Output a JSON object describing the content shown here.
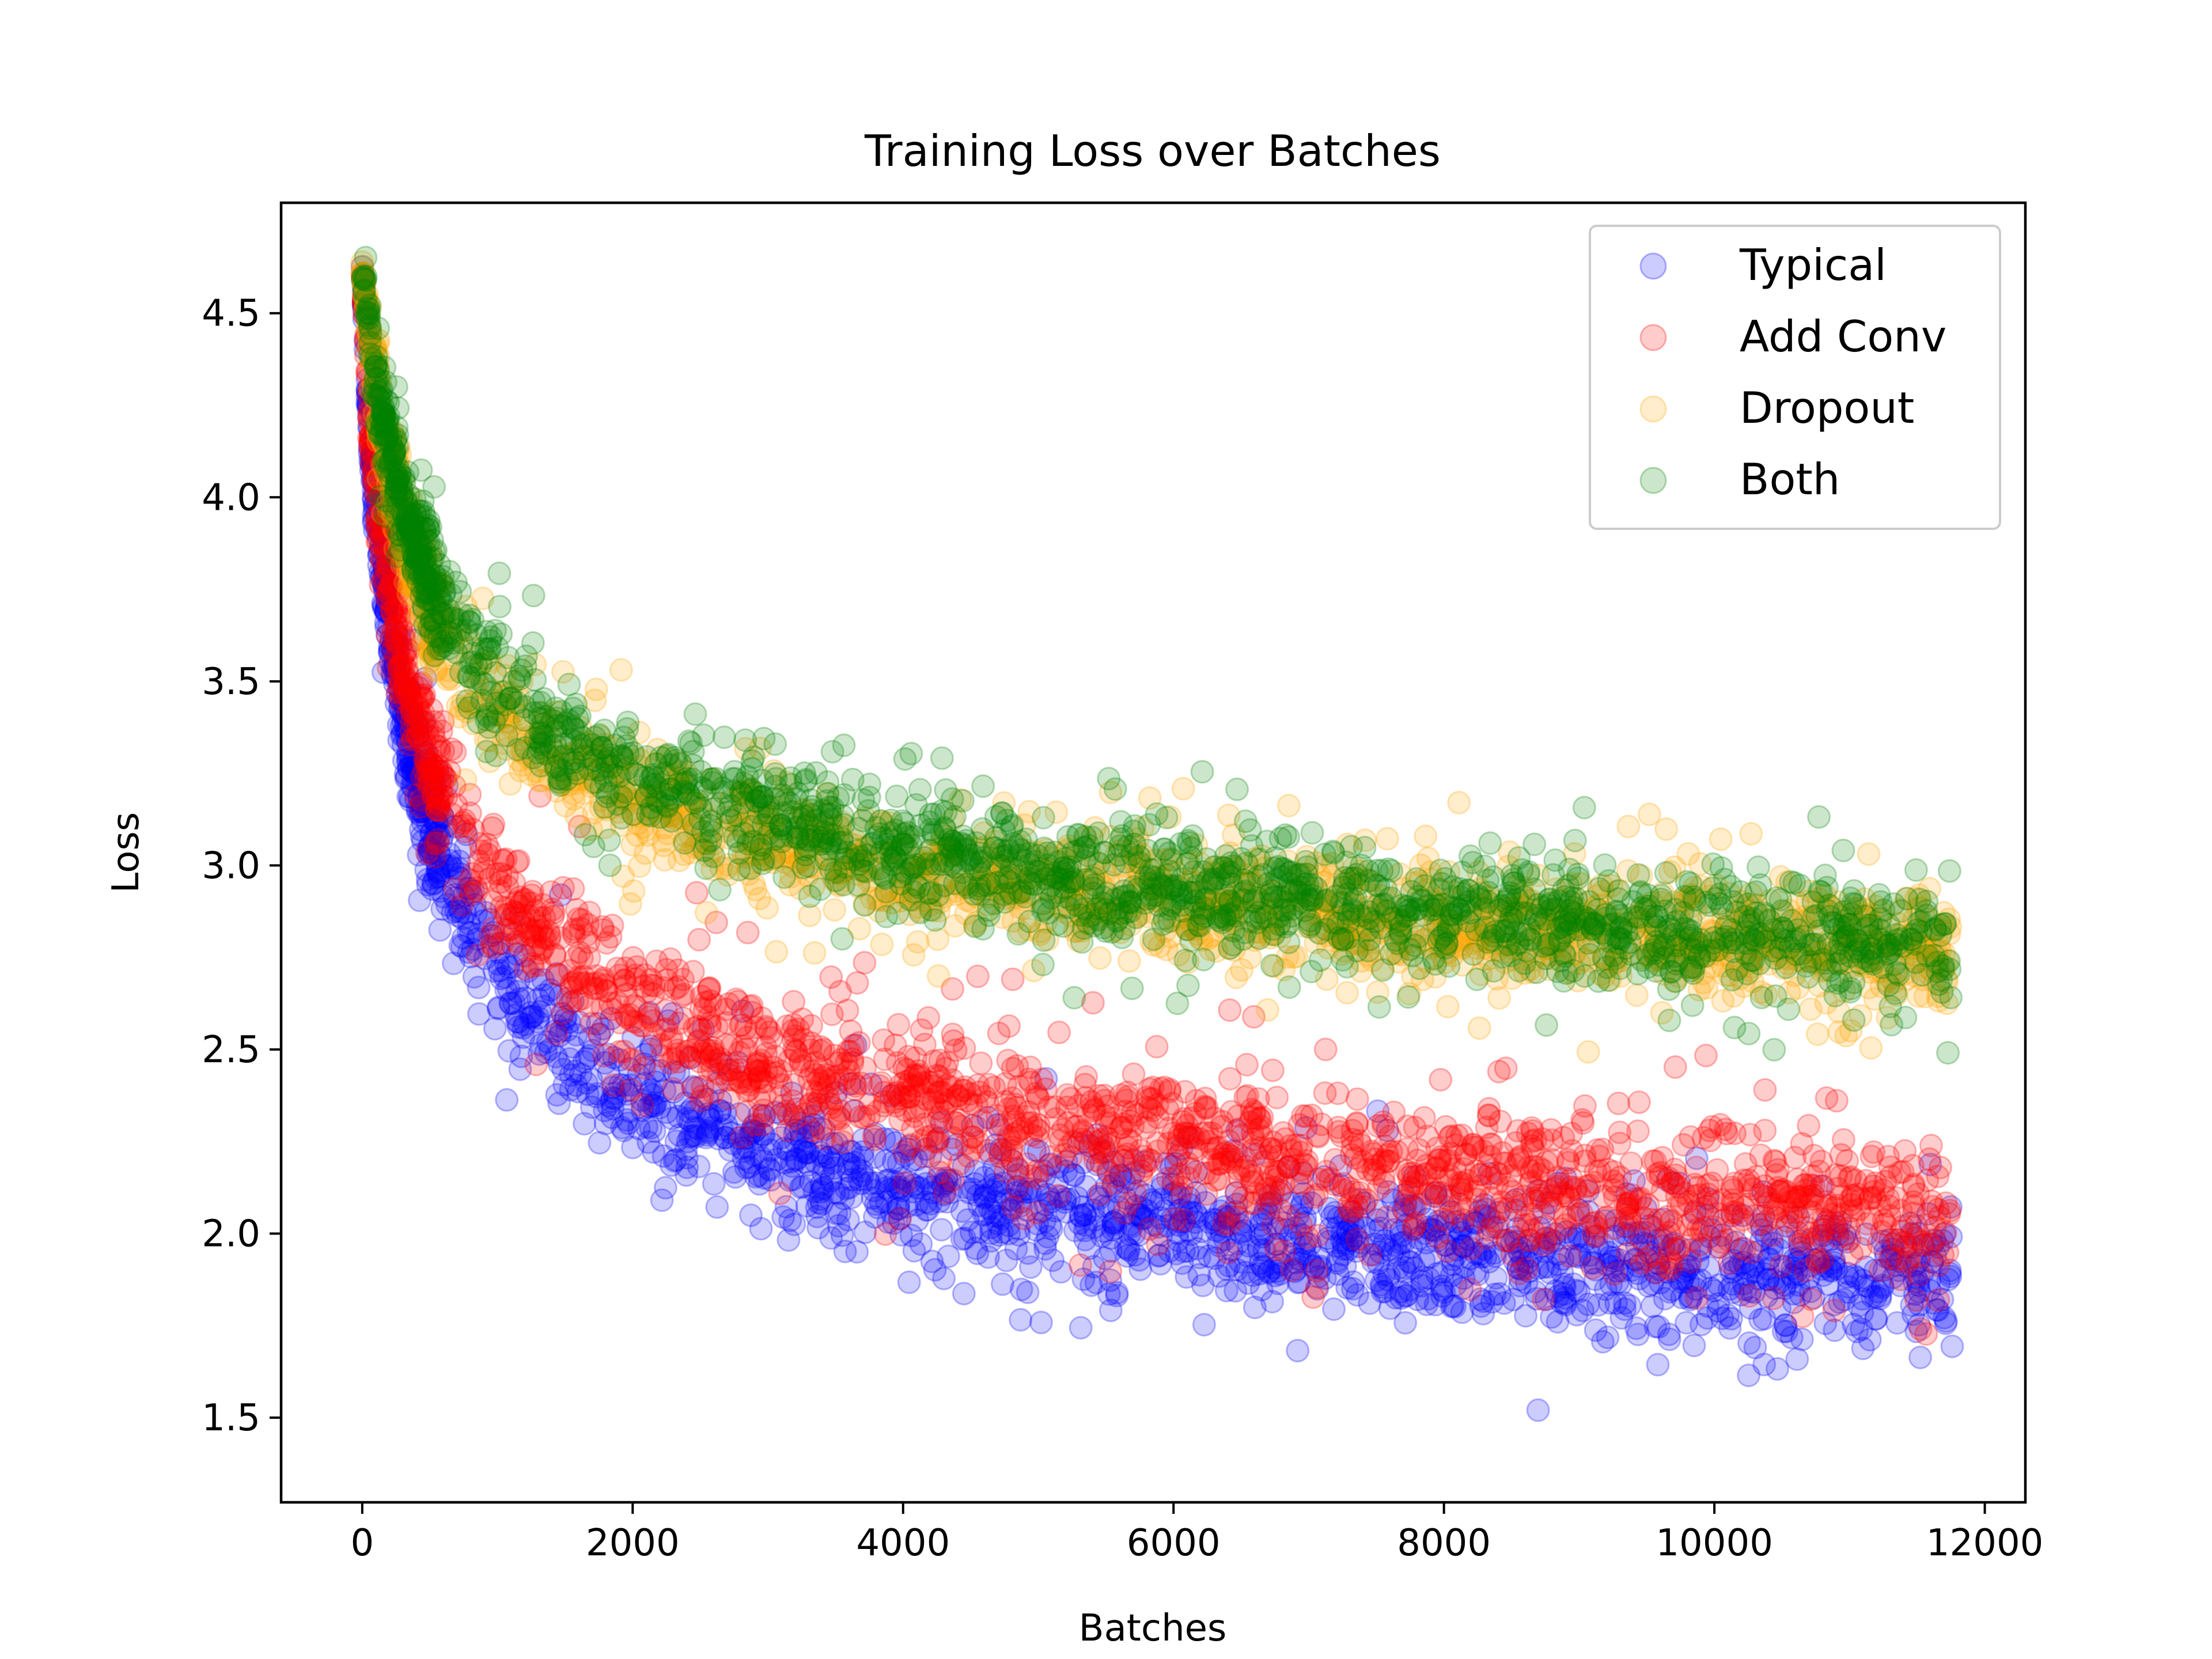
{
  "chart_data": {
    "type": "scatter",
    "title": "Training Loss over Batches",
    "xlabel": "Batches",
    "ylabel": "Loss",
    "xlim": [
      -600,
      12300
    ],
    "ylim": [
      1.27,
      4.8
    ],
    "xticks": [
      0,
      2000,
      4000,
      6000,
      8000,
      10000,
      12000
    ],
    "xtick_labels": [
      "0",
      "2000",
      "4000",
      "6000",
      "8000",
      "10000",
      "12000"
    ],
    "yticks": [
      1.5,
      2.0,
      2.5,
      3.0,
      3.5,
      4.0,
      4.5
    ],
    "ytick_labels": [
      "1.5",
      "2.0",
      "2.5",
      "3.0",
      "3.5",
      "4.0",
      "4.5"
    ],
    "grid": false,
    "legend_position": "top-right",
    "marker_alpha": 0.2,
    "series": [
      {
        "name": "Typical",
        "color": "#0000ff",
        "x": [
          0,
          50,
          100,
          200,
          300,
          400,
          600,
          800,
          1000,
          1500,
          2000,
          2500,
          3000,
          3500,
          4000,
          4500,
          5000,
          5500,
          6000,
          6500,
          7000,
          7500,
          8000,
          8500,
          9000,
          9500,
          10000,
          10500,
          11000,
          11500,
          11760
        ],
        "mean": [
          4.62,
          4.2,
          3.95,
          3.65,
          3.42,
          3.25,
          3.02,
          2.85,
          2.72,
          2.5,
          2.37,
          2.28,
          2.21,
          2.16,
          2.12,
          2.09,
          2.06,
          2.04,
          2.02,
          2.0,
          1.98,
          1.96,
          1.94,
          1.93,
          1.92,
          1.91,
          1.9,
          1.89,
          1.88,
          1.87,
          1.87
        ],
        "spread": [
          0.03,
          0.1,
          0.14,
          0.16,
          0.18,
          0.2,
          0.22,
          0.22,
          0.23,
          0.23,
          0.23,
          0.23,
          0.23,
          0.23,
          0.23,
          0.23,
          0.23,
          0.23,
          0.23,
          0.23,
          0.23,
          0.23,
          0.23,
          0.23,
          0.23,
          0.23,
          0.23,
          0.23,
          0.23,
          0.23,
          0.23
        ]
      },
      {
        "name": "Add Conv",
        "color": "#ff0000",
        "x": [
          0,
          50,
          100,
          200,
          300,
          400,
          600,
          800,
          1000,
          1500,
          2000,
          2500,
          3000,
          3500,
          4000,
          4500,
          5000,
          5500,
          6000,
          6500,
          7000,
          7500,
          8000,
          8500,
          9000,
          9500,
          10000,
          10500,
          11000,
          11500,
          11760
        ],
        "mean": [
          4.62,
          4.25,
          4.02,
          3.75,
          3.55,
          3.4,
          3.2,
          3.05,
          2.94,
          2.75,
          2.62,
          2.53,
          2.46,
          2.41,
          2.37,
          2.33,
          2.3,
          2.27,
          2.25,
          2.22,
          2.2,
          2.18,
          2.16,
          2.14,
          2.12,
          2.11,
          2.09,
          2.08,
          2.06,
          2.05,
          2.04
        ],
        "spread": [
          0.03,
          0.1,
          0.14,
          0.16,
          0.18,
          0.2,
          0.21,
          0.22,
          0.22,
          0.22,
          0.22,
          0.22,
          0.22,
          0.22,
          0.22,
          0.22,
          0.22,
          0.22,
          0.22,
          0.22,
          0.22,
          0.22,
          0.22,
          0.22,
          0.22,
          0.22,
          0.22,
          0.22,
          0.22,
          0.22,
          0.22
        ]
      },
      {
        "name": "Dropout",
        "color": "#ffa500",
        "x": [
          0,
          50,
          100,
          200,
          300,
          400,
          600,
          800,
          1000,
          1500,
          2000,
          2500,
          3000,
          3500,
          4000,
          4500,
          5000,
          5500,
          6000,
          6500,
          7000,
          7500,
          8000,
          8500,
          9000,
          9500,
          10000,
          10500,
          11000,
          11500,
          11760
        ],
        "mean": [
          4.62,
          4.45,
          4.3,
          4.08,
          3.92,
          3.8,
          3.62,
          3.5,
          3.41,
          3.27,
          3.18,
          3.11,
          3.06,
          3.02,
          2.99,
          2.96,
          2.94,
          2.92,
          2.9,
          2.88,
          2.87,
          2.85,
          2.84,
          2.83,
          2.82,
          2.81,
          2.8,
          2.79,
          2.78,
          2.77,
          2.77
        ],
        "spread": [
          0.03,
          0.1,
          0.14,
          0.16,
          0.17,
          0.18,
          0.19,
          0.19,
          0.19,
          0.19,
          0.19,
          0.19,
          0.19,
          0.19,
          0.19,
          0.19,
          0.19,
          0.19,
          0.19,
          0.19,
          0.19,
          0.19,
          0.19,
          0.19,
          0.19,
          0.19,
          0.19,
          0.19,
          0.19,
          0.19,
          0.19
        ]
      },
      {
        "name": "Both",
        "color": "#008000",
        "x": [
          0,
          50,
          100,
          200,
          300,
          400,
          600,
          800,
          1000,
          1500,
          2000,
          2500,
          3000,
          3500,
          4000,
          4500,
          5000,
          5500,
          6000,
          6500,
          7000,
          7500,
          8000,
          8500,
          9000,
          9500,
          10000,
          10500,
          11000,
          11500,
          11760
        ],
        "mean": [
          4.62,
          4.48,
          4.33,
          4.12,
          3.97,
          3.86,
          3.69,
          3.57,
          3.48,
          3.34,
          3.25,
          3.18,
          3.13,
          3.09,
          3.05,
          3.02,
          2.99,
          2.97,
          2.95,
          2.93,
          2.91,
          2.89,
          2.87,
          2.86,
          2.85,
          2.83,
          2.82,
          2.81,
          2.8,
          2.79,
          2.78
        ],
        "spread": [
          0.03,
          0.1,
          0.13,
          0.15,
          0.17,
          0.18,
          0.19,
          0.19,
          0.19,
          0.19,
          0.19,
          0.19,
          0.19,
          0.19,
          0.19,
          0.19,
          0.19,
          0.19,
          0.19,
          0.19,
          0.19,
          0.19,
          0.19,
          0.19,
          0.19,
          0.19,
          0.19,
          0.19,
          0.19,
          0.19,
          0.19
        ]
      }
    ]
  }
}
